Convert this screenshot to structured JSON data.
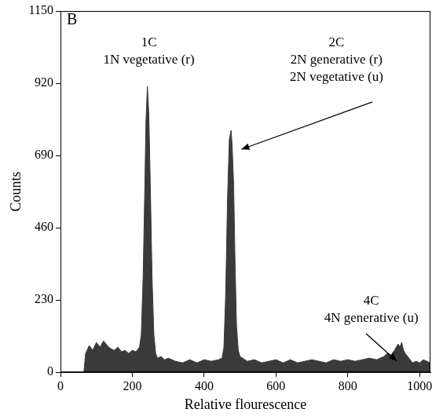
{
  "chart_data": {
    "type": "area",
    "title": "B",
    "x_label": "Relative flourescence",
    "y_label": "Counts",
    "x": [
      65,
      70,
      80,
      90,
      100,
      110,
      120,
      130,
      140,
      150,
      160,
      170,
      180,
      190,
      200,
      210,
      220,
      225,
      230,
      235,
      238,
      242,
      246,
      250,
      255,
      260,
      265,
      270,
      280,
      290,
      300,
      320,
      340,
      360,
      380,
      400,
      420,
      440,
      450,
      455,
      460,
      465,
      470,
      475,
      478,
      482,
      486,
      490,
      495,
      500,
      520,
      540,
      560,
      580,
      600,
      620,
      640,
      660,
      680,
      700,
      720,
      740,
      760,
      780,
      800,
      820,
      840,
      860,
      880,
      900,
      910,
      920,
      930,
      940,
      945,
      950,
      955,
      960,
      970,
      980,
      990,
      1000,
      1010,
      1020,
      1030
    ],
    "values": [
      0,
      60,
      85,
      70,
      95,
      80,
      100,
      85,
      75,
      70,
      80,
      65,
      70,
      60,
      70,
      65,
      80,
      120,
      300,
      600,
      800,
      910,
      820,
      600,
      300,
      120,
      60,
      45,
      50,
      40,
      45,
      35,
      30,
      40,
      30,
      40,
      35,
      40,
      45,
      80,
      250,
      550,
      740,
      770,
      720,
      600,
      350,
      150,
      70,
      50,
      35,
      40,
      30,
      35,
      40,
      30,
      40,
      30,
      35,
      40,
      35,
      30,
      40,
      35,
      40,
      35,
      40,
      45,
      40,
      50,
      60,
      55,
      70,
      90,
      80,
      95,
      70,
      60,
      45,
      30,
      35,
      30,
      40,
      35,
      30
    ],
    "color": "#3a3a3a",
    "xlim": [
      0,
      1030
    ],
    "xticks": [
      0,
      200,
      400,
      600,
      800,
      1000
    ],
    "ylim": [
      0,
      1150
    ],
    "yticks": [
      0,
      230,
      460,
      690,
      920,
      1150
    ],
    "grid": false,
    "annotations": [
      {
        "text": [
          "1C",
          "1N vegetative (r)"
        ]
      },
      {
        "text": [
          "2C",
          "2N generative (r)",
          "2N vegetative (u)"
        ]
      },
      {
        "text": [
          "4C",
          "4N generative (u)"
        ]
      }
    ]
  }
}
